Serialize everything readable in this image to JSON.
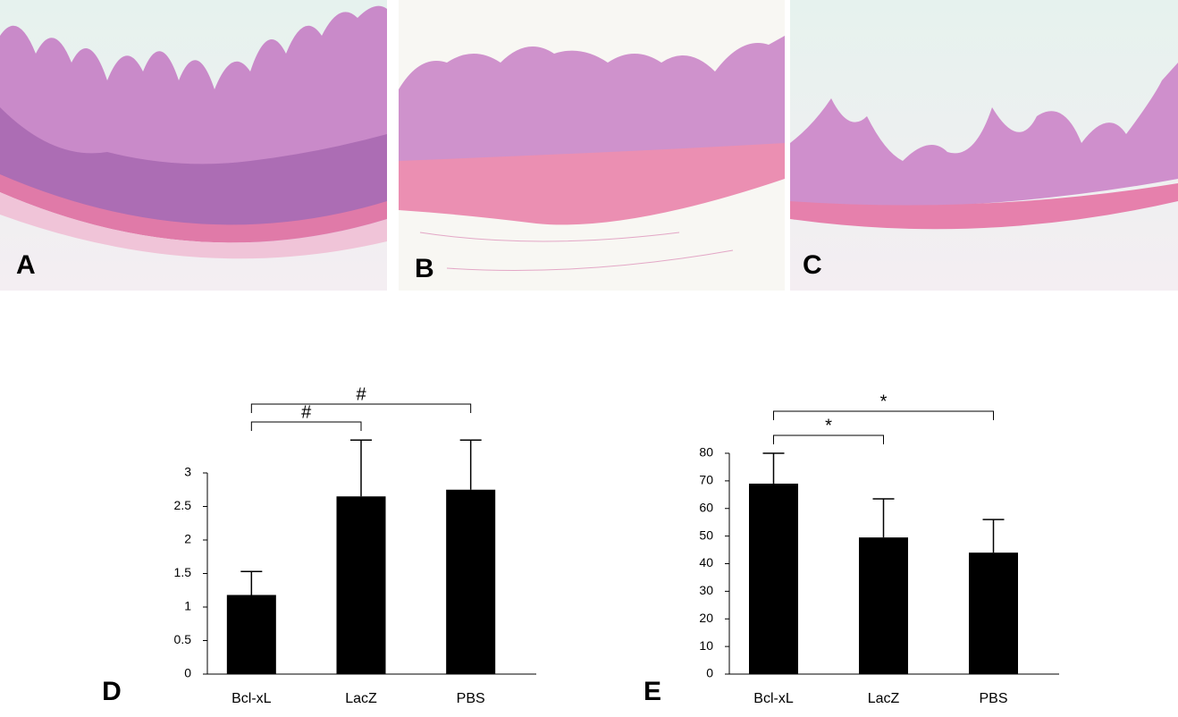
{
  "images": [
    {
      "label": "A"
    },
    {
      "label": "B"
    },
    {
      "label": "C"
    }
  ],
  "chart_data": [
    {
      "type": "bar",
      "panel_label": "D",
      "categories": [
        "Bcl-xL",
        "LacZ",
        "PBS"
      ],
      "values": [
        1.18,
        2.65,
        2.75
      ],
      "errors": [
        0.35,
        0.84,
        0.74
      ],
      "color": "#000000",
      "ylim": [
        0,
        3
      ],
      "yticks": [
        0,
        0.5,
        1,
        1.5,
        2,
        2.5,
        3
      ],
      "annotations": [
        {
          "text": "#",
          "between": [
            "Bcl-xL",
            "LacZ"
          ]
        },
        {
          "text": "#",
          "between": [
            "Bcl-xL",
            "PBS"
          ]
        }
      ]
    },
    {
      "type": "bar",
      "panel_label": "E",
      "categories": [
        "Bcl-xL",
        "LacZ",
        "PBS"
      ],
      "values": [
        69,
        49.5,
        44
      ],
      "errors": [
        11,
        14,
        12
      ],
      "color": "#000000",
      "ylim": [
        0,
        80
      ],
      "yticks": [
        0,
        10,
        20,
        30,
        40,
        50,
        60,
        70,
        80
      ],
      "annotations": [
        {
          "text": "*",
          "between": [
            "Bcl-xL",
            "LacZ"
          ]
        },
        {
          "text": "*",
          "between": [
            "Bcl-xL",
            "PBS"
          ]
        }
      ]
    }
  ]
}
